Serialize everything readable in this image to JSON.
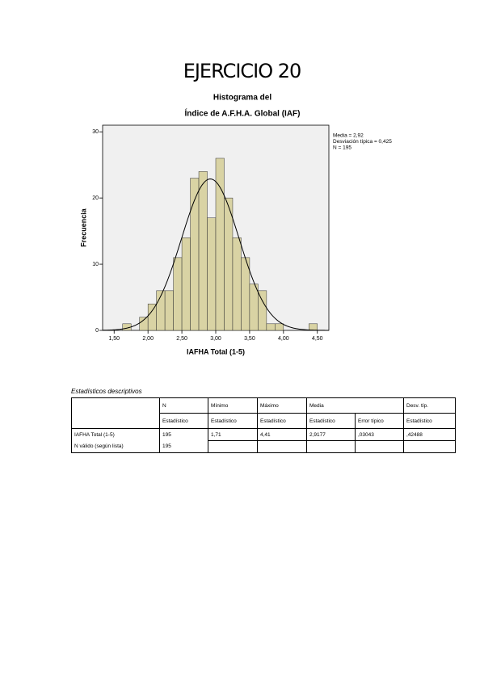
{
  "title": "EJERCICIO 20",
  "chart_data": {
    "type": "histogram",
    "title": "Histograma del",
    "subtitle": "Índice de A.F.H.A. Global (IAF)",
    "x_label": "IAFHA Total (1-5)",
    "y_label": "Frecuencia",
    "bins": [
      1.625,
      1.75,
      1.875,
      2.0,
      2.125,
      2.25,
      2.375,
      2.5,
      2.625,
      2.75,
      2.875,
      3.0,
      3.125,
      3.25,
      3.375,
      3.5,
      3.625,
      3.75,
      3.875,
      4.0,
      4.125,
      4.25,
      4.375,
      4.5
    ],
    "counts": [
      1,
      0,
      2,
      4,
      6,
      6,
      11,
      14,
      23,
      24,
      17,
      26,
      20,
      14,
      11,
      7,
      6,
      1,
      1,
      0,
      0,
      0,
      1
    ],
    "color": "#d9d3a4",
    "curve_color": "#000000",
    "mean": {
      "value": 2.92,
      "label": "Media = 2,92"
    },
    "sd": {
      "value": 0.425,
      "label": "Desviación típica = 0,425"
    },
    "n": {
      "value": 195,
      "label": "N = 195"
    },
    "xlim": [
      1.33,
      4.67
    ],
    "ylim": [
      0,
      31
    ],
    "xticks": [
      {
        "value": 1.5,
        "label": "1,50"
      },
      {
        "value": 2.0,
        "label": "2,00"
      },
      {
        "value": 2.5,
        "label": "2,50"
      },
      {
        "value": 3.0,
        "label": "3,00"
      },
      {
        "value": 3.5,
        "label": "3,50"
      },
      {
        "value": 4.0,
        "label": "4,00"
      },
      {
        "value": 4.5,
        "label": "4,50"
      }
    ],
    "yticks": [
      0,
      10,
      20,
      30
    ]
  },
  "table": {
    "caption": "Estadísticos descriptivos",
    "header_top": [
      "N",
      "Mínimo",
      "Máximo",
      "Media",
      "Desv. típ."
    ],
    "header_sub": [
      "Estadístico",
      "Estadístico",
      "Estadístico",
      "Estadístico",
      "Error típico",
      "Estadístico"
    ],
    "rows": [
      [
        "IAFHA Total (1-5)",
        "195",
        "1,71",
        "4,41",
        "2,9177",
        ",03043",
        ",42488"
      ],
      [
        "N válido (según lista)",
        "195"
      ]
    ]
  }
}
